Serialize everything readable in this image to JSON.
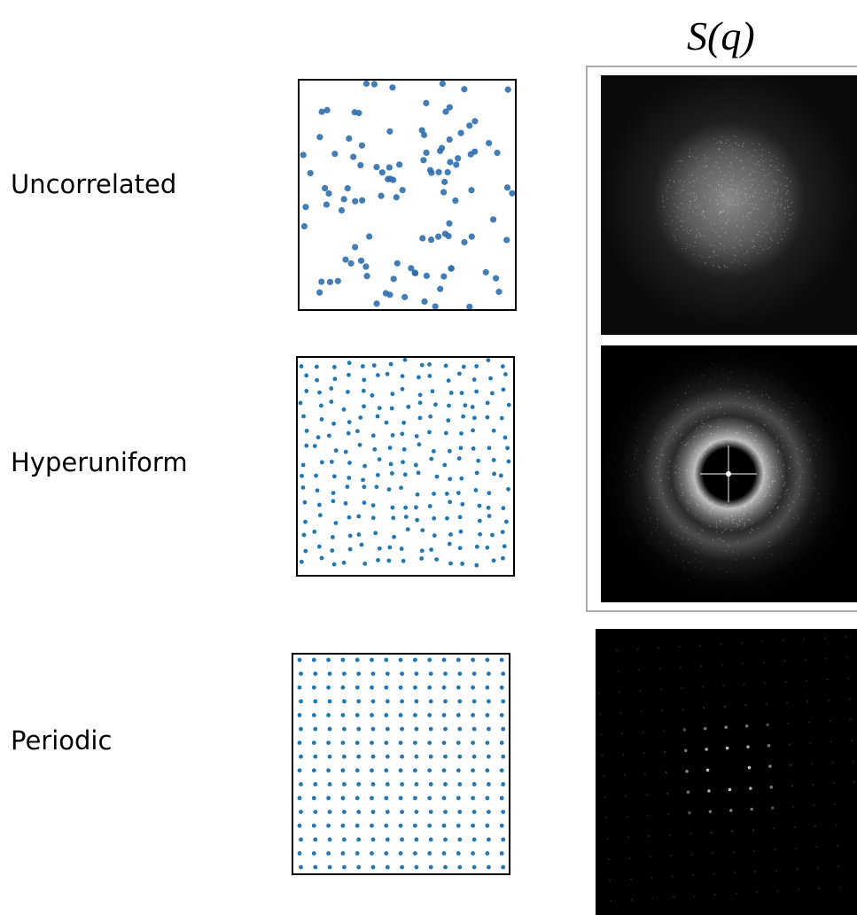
{
  "header": {
    "title": "S(q)"
  },
  "rows": [
    {
      "label": "Uncorrelated"
    },
    {
      "label": "Hyperuniform"
    },
    {
      "label": "Periodic"
    }
  ]
}
